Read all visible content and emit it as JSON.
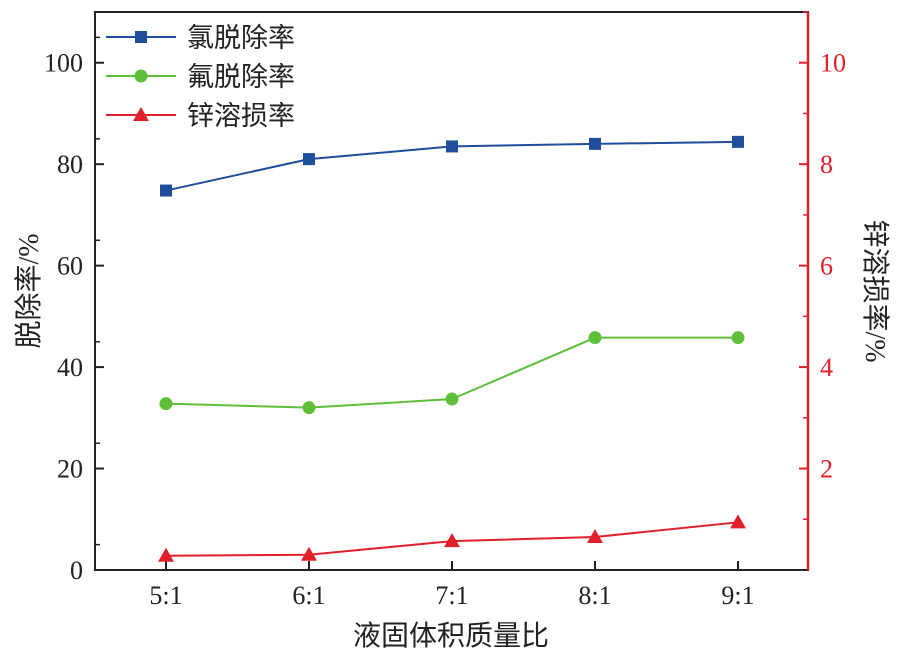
{
  "chart_data": {
    "type": "line",
    "categories": [
      "5:1",
      "6:1",
      "7:1",
      "8:1",
      "9:1"
    ],
    "xlabel": "液固体积质量比",
    "ylabel_left": "脱除率/%",
    "ylabel_right": "锌溶损率/%",
    "y_left_lim": [
      0,
      110
    ],
    "y_left_ticks": [
      "0",
      "20",
      "40",
      "60",
      "80",
      "100"
    ],
    "y_right_lim": [
      0,
      11
    ],
    "y_right_ticks": [
      "2",
      "4",
      "6",
      "8",
      "10"
    ],
    "grid": false,
    "legend_position": "top-left",
    "series": [
      {
        "name": "氯脱除率",
        "axis": "left",
        "marker": "square",
        "color": "#1f4e9c",
        "values": [
          74.8,
          81.0,
          83.5,
          84.0,
          84.4
        ]
      },
      {
        "name": "氟脱除率",
        "axis": "left",
        "marker": "circle",
        "color": "#5fbf3a",
        "values": [
          32.8,
          32.0,
          33.7,
          45.8,
          45.8
        ]
      },
      {
        "name": "锌溶损率",
        "axis": "right",
        "marker": "triangle",
        "color": "#e0202a",
        "values": [
          0.28,
          0.3,
          0.57,
          0.65,
          0.94
        ]
      }
    ]
  }
}
